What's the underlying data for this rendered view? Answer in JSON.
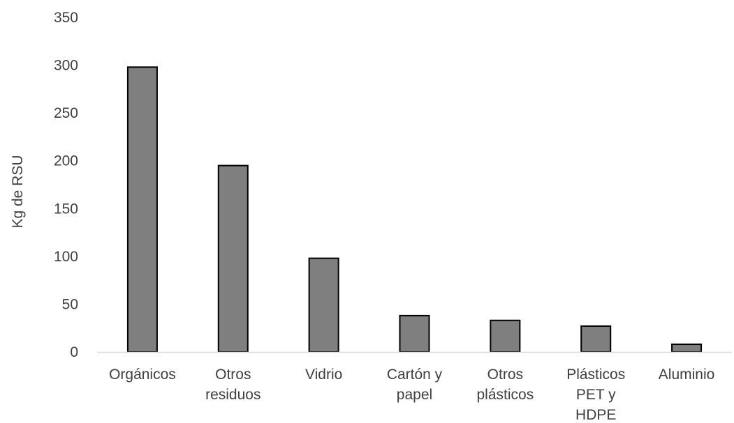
{
  "chart_data": {
    "type": "bar",
    "categories": [
      [
        "Orgánicos"
      ],
      [
        "Otros",
        "residuos"
      ],
      [
        "Vidrio"
      ],
      [
        "Cartón y",
        "papel"
      ],
      [
        "Otros",
        "plásticos"
      ],
      [
        "Plásticos",
        "PET y",
        "HDPE"
      ],
      [
        "Aluminio"
      ]
    ],
    "values": [
      298,
      195,
      98,
      38,
      33,
      27,
      8
    ],
    "ylabel": "Kg  de RSU",
    "xlabel": "",
    "ylim": [
      0,
      350
    ],
    "yticks": [
      0,
      50,
      100,
      150,
      200,
      250,
      300,
      350
    ],
    "grid": false,
    "legend": "none",
    "colors": {
      "bar_fill": "#7f7f7f",
      "bar_stroke": "#000000",
      "axis": "#d9d9d9",
      "text": "#404040"
    }
  }
}
